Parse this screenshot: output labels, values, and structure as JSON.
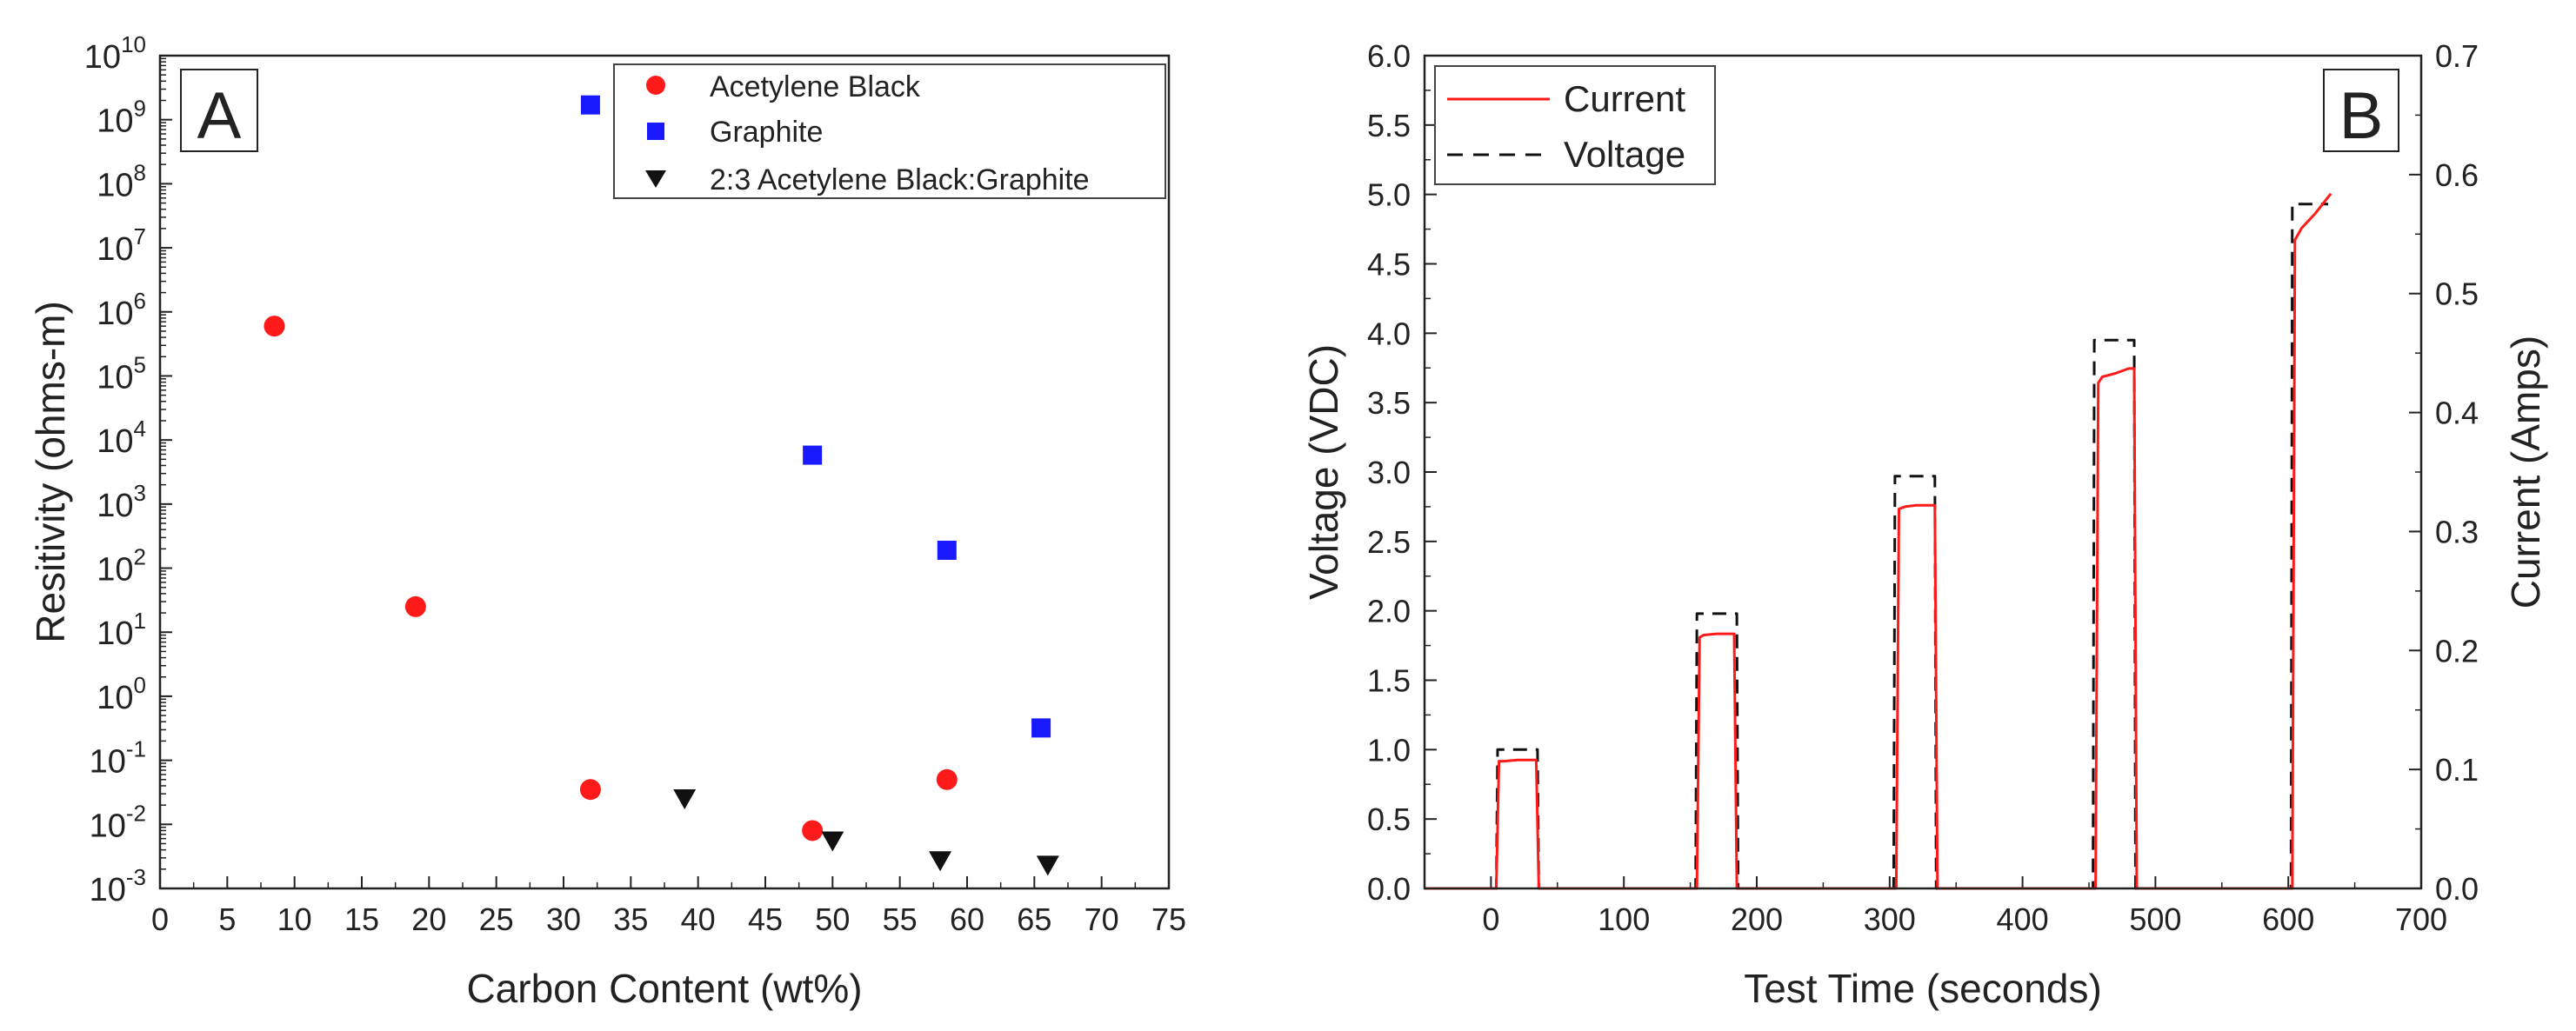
{
  "chart_data": [
    {
      "type": "scatter",
      "panel_label": "A",
      "xlabel": "Carbon Content (wt%)",
      "ylabel": "Resitivity (ohms-m)",
      "xlim": [
        0,
        75
      ],
      "ylim_log10": [
        -3,
        10
      ],
      "yscale": "log",
      "x_ticks": [
        0,
        5,
        10,
        15,
        20,
        25,
        30,
        35,
        40,
        45,
        50,
        55,
        60,
        65,
        70,
        75
      ],
      "y_tick_exponents": [
        -3,
        -2,
        -1,
        0,
        1,
        2,
        3,
        4,
        5,
        6,
        7,
        8,
        9,
        10
      ],
      "legend_position": "top-right",
      "series": [
        {
          "name": "Acetylene Black",
          "marker": "circle",
          "color": "#ff1a1a",
          "points": [
            {
              "x": 8.5,
              "y": 600000
            },
            {
              "x": 19,
              "y": 25
            },
            {
              "x": 32,
              "y": 0.035
            },
            {
              "x": 48.5,
              "y": 0.008
            },
            {
              "x": 58.5,
              "y": 0.05
            }
          ]
        },
        {
          "name": "Graphite",
          "marker": "square",
          "color": "#1a1aff",
          "points": [
            {
              "x": 32,
              "y": 1700000000
            },
            {
              "x": 48.5,
              "y": 5800
            },
            {
              "x": 58.5,
              "y": 190
            },
            {
              "x": 65.5,
              "y": 0.32
            }
          ]
        },
        {
          "name": "2:3 Acetylene Black:Graphite",
          "marker": "triangle-down",
          "color": "#111111",
          "points": [
            {
              "x": 39,
              "y": 0.025
            },
            {
              "x": 50,
              "y": 0.0055
            },
            {
              "x": 58,
              "y": 0.0027
            },
            {
              "x": 66,
              "y": 0.0023
            }
          ]
        }
      ]
    },
    {
      "type": "line",
      "panel_label": "B",
      "xlabel": "Test Time (seconds)",
      "ylabel": "Voltage (VDC)",
      "ylabel_right": "Current (Amps)",
      "xlim": [
        -50,
        700
      ],
      "ylim": [
        0,
        6
      ],
      "ylim_right": [
        0,
        0.7
      ],
      "x_ticks": [
        0,
        100,
        200,
        300,
        400,
        500,
        600,
        700
      ],
      "y_ticks": [
        "0.0",
        "0.5",
        "1.0",
        "1.5",
        "2.0",
        "2.5",
        "3.0",
        "3.5",
        "4.0",
        "4.5",
        "5.0",
        "5.5",
        "6.0"
      ],
      "y_ticks_right": [
        "0.0",
        "0.1",
        "0.2",
        "0.3",
        "0.4",
        "0.5",
        "0.6",
        "0.7"
      ],
      "legend_position": "top-left",
      "series": [
        {
          "name": "Current",
          "style": "solid",
          "color": "#ff1a1a",
          "axis": "right",
          "x": [
            -50,
            4,
            6,
            10,
            20,
            30,
            34,
            36,
            155,
            157,
            160,
            170,
            180,
            183,
            185,
            305,
            307,
            312,
            320,
            330,
            334,
            336,
            455,
            457,
            460,
            470,
            480,
            484,
            486,
            603,
            605,
            610,
            620,
            632
          ],
          "y": [
            0,
            0,
            0.107,
            0.107,
            0.108,
            0.108,
            0.108,
            0,
            0,
            0.211,
            0.213,
            0.214,
            0.214,
            0.214,
            0,
            0,
            0.319,
            0.321,
            0.322,
            0.322,
            0.322,
            0,
            0,
            0.425,
            0.43,
            0.433,
            0.437,
            0.437,
            0,
            0,
            0.545,
            0.555,
            0.567,
            0.584
          ]
        },
        {
          "name": "Voltage",
          "style": "dashed",
          "color": "#111111",
          "axis": "left",
          "x": [
            -50,
            4,
            5,
            35,
            36,
            154,
            155,
            185,
            186,
            303,
            304,
            334,
            335,
            453,
            454,
            484,
            485,
            602,
            603,
            630
          ],
          "y": [
            0,
            0,
            1.0,
            1.0,
            0,
            0,
            1.98,
            1.98,
            0,
            0,
            2.97,
            2.97,
            0,
            0,
            3.95,
            3.95,
            0,
            0,
            4.93,
            4.93
          ]
        }
      ]
    }
  ]
}
